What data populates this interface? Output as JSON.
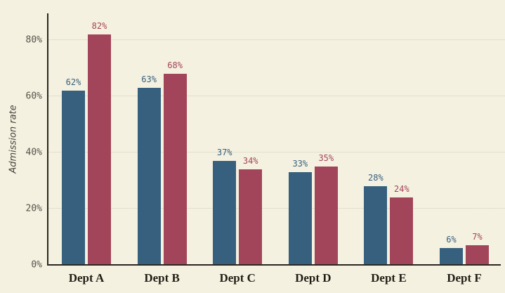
{
  "chart_data": {
    "type": "bar",
    "title": "",
    "ylabel": "Admission rate",
    "xlabel": "",
    "unit": "%",
    "categories": [
      "Dept A",
      "Dept B",
      "Dept C",
      "Dept D",
      "Dept E",
      "Dept F"
    ],
    "series": [
      {
        "name": "blue",
        "color": "#36607e",
        "values": [
          62,
          63,
          37,
          33,
          28,
          6
        ]
      },
      {
        "name": "red",
        "color": "#a3455a",
        "values": [
          82,
          68,
          34,
          35,
          24,
          7
        ]
      }
    ],
    "yticks": [
      "0%",
      "20%",
      "40%",
      "60%",
      "80%"
    ],
    "ytick_values": [
      0,
      20,
      40,
      60,
      80
    ],
    "ylim": [
      0,
      89
    ],
    "grid": true,
    "legend_position": "none",
    "value_labels": true,
    "background_color": "#f5f1e0",
    "axis_color": "#2a2722",
    "grid_color": "#dcd7c4",
    "tick_label_color": "#55524a",
    "category_label_color": "#211d15"
  }
}
